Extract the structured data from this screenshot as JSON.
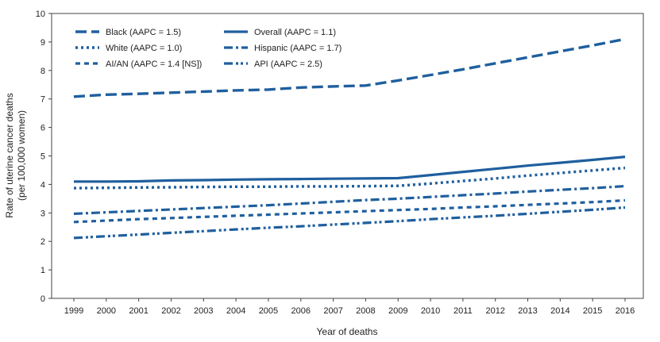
{
  "chart_data": {
    "type": "line",
    "title": "",
    "xlabel": "Year of deaths",
    "ylabel_line1": "Rate of uterine cancer deaths",
    "ylabel_line2": "(per 100,000 women)",
    "ylim": [
      0,
      10
    ],
    "yticks": [
      "0",
      "1",
      "2",
      "3",
      "4",
      "5",
      "6",
      "7",
      "8",
      "9",
      "10"
    ],
    "categories": [
      "1999",
      "2000",
      "2001",
      "2002",
      "2003",
      "2004",
      "2005",
      "2006",
      "2007",
      "2008",
      "2009",
      "2010",
      "2011",
      "2012",
      "2013",
      "2014",
      "2015",
      "2016"
    ],
    "line_color": "#1f5f9e",
    "series": [
      {
        "name": "Black (AAPC = 1.5)",
        "dash": "long",
        "values": [
          7.08,
          7.15,
          7.18,
          7.22,
          7.26,
          7.3,
          7.33,
          7.4,
          7.44,
          7.47,
          7.65,
          7.84,
          8.04,
          8.25,
          8.46,
          8.67,
          8.88,
          9.1
        ]
      },
      {
        "name": "Overall (AAPC = 1.1)",
        "dash": "solid",
        "values": [
          4.1,
          4.1,
          4.11,
          4.14,
          4.15,
          4.17,
          4.18,
          4.19,
          4.2,
          4.21,
          4.22,
          4.33,
          4.44,
          4.55,
          4.66,
          4.76,
          4.86,
          4.97
        ]
      },
      {
        "name": "White (AAPC = 1.0)",
        "dash": "dot",
        "values": [
          3.87,
          3.88,
          3.89,
          3.9,
          3.91,
          3.92,
          3.92,
          3.93,
          3.93,
          3.94,
          3.95,
          4.03,
          4.12,
          4.21,
          4.31,
          4.4,
          4.49,
          4.58
        ]
      },
      {
        "name": "Hispanic (AAPC = 1.7)",
        "dash": "dashdot",
        "values": [
          2.97,
          3.02,
          3.07,
          3.12,
          3.17,
          3.22,
          3.27,
          3.33,
          3.39,
          3.45,
          3.5,
          3.56,
          3.62,
          3.68,
          3.75,
          3.81,
          3.87,
          3.94
        ]
      },
      {
        "name": "AI/AN (AAPC = 1.4 [NS])",
        "dash": "shortdash",
        "values": [
          2.68,
          2.73,
          2.78,
          2.82,
          2.86,
          2.9,
          2.94,
          2.98,
          3.02,
          3.06,
          3.1,
          3.14,
          3.19,
          3.23,
          3.28,
          3.33,
          3.38,
          3.44
        ]
      },
      {
        "name": "API (AAPC = 2.5)",
        "dash": "dashdotdot",
        "values": [
          2.12,
          2.18,
          2.24,
          2.3,
          2.36,
          2.42,
          2.48,
          2.53,
          2.59,
          2.65,
          2.71,
          2.78,
          2.84,
          2.9,
          2.97,
          3.04,
          3.11,
          3.19
        ]
      }
    ]
  }
}
